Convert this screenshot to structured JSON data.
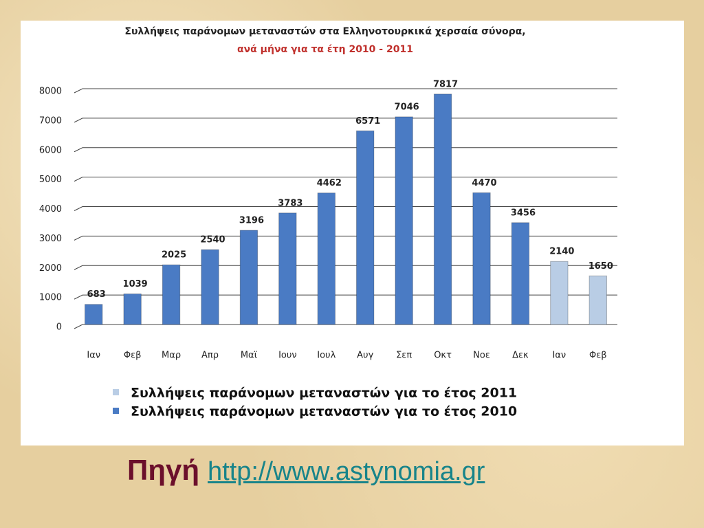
{
  "chart_data": {
    "type": "bar",
    "title": "Συλλήψεις παράνομων μεταναστών  στα Ελληνοτουρκικά  χερσαία σύνορα,",
    "subtitle": "ανά μήνα για τα έτη 2010 - 2011",
    "categories": [
      "Ιαν",
      "Φεβ",
      "Μαρ",
      "Απρ",
      "Μαϊ",
      "Ιουν",
      "Ιουλ",
      "Αυγ",
      "Σεπ",
      "Οκτ",
      "Νοε",
      "Δεκ",
      "Ιαν",
      "Φεβ"
    ],
    "series": [
      {
        "name": "Συλλήψεις παράνομων μεταναστών για το έτος 2011",
        "color": "#b9cde5",
        "values": [
          null,
          null,
          null,
          null,
          null,
          null,
          null,
          null,
          null,
          null,
          null,
          null,
          2140,
          1650
        ]
      },
      {
        "name": "Συλλήψεις παράνομων μεταναστών για το έτος 2010",
        "color": "#4a7bc4",
        "values": [
          683,
          1039,
          2025,
          2540,
          3196,
          3783,
          4462,
          6571,
          7046,
          7817,
          4470,
          3456,
          null,
          null
        ]
      }
    ],
    "ylim": [
      0,
      8000
    ],
    "yticks": [
      0,
      1000,
      2000,
      3000,
      4000,
      5000,
      6000,
      7000,
      8000
    ],
    "grid": true
  },
  "source": {
    "label": "Πηγή",
    "link": "http://www.astynomia.gr"
  }
}
